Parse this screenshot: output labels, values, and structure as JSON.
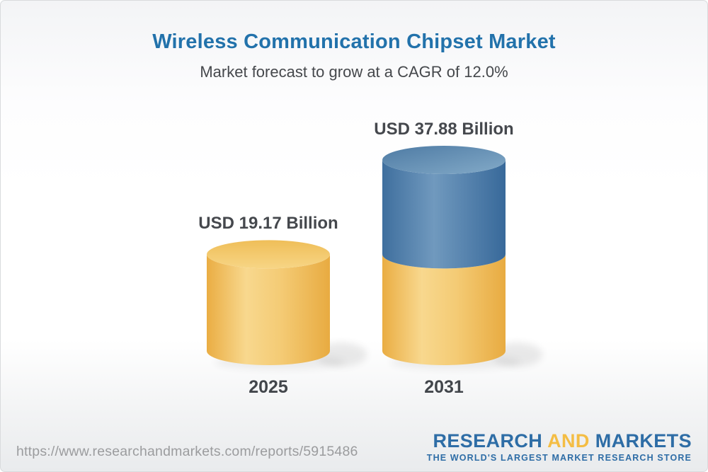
{
  "header": {
    "title": "Wireless Communication Chipset Market",
    "subtitle": "Market forecast to grow at a CAGR of 12.0%"
  },
  "chart_data": {
    "type": "bar",
    "style": "3d-cylinder",
    "title": "Wireless Communication Chipset Market",
    "subtitle": "Market forecast to grow at a CAGR of 12.0%",
    "cagr_pct": 12.0,
    "unit": "USD Billion",
    "categories": [
      "2025",
      "2031"
    ],
    "values": [
      19.17,
      37.88
    ],
    "bars": [
      {
        "category": "2025",
        "value": 19.17,
        "label": "USD 19.17 Billion",
        "segments": [
          {
            "value": 19.17,
            "tone": "yellow"
          }
        ]
      },
      {
        "category": "2031",
        "value": 37.88,
        "label": "USD 37.88 Billion",
        "segments": [
          {
            "value": 19.17,
            "tone": "yellow"
          },
          {
            "value": 18.71,
            "tone": "blue"
          }
        ]
      }
    ],
    "palette": {
      "yellow": "#F2C463",
      "blue": "#55809F"
    },
    "ylim": [
      0,
      37.88
    ],
    "grid": false,
    "legend": false
  },
  "colors": {
    "title_blue": "#2272AB",
    "text_dark": "#45484D",
    "url_gray": "#9B9C9E",
    "logo_blue": "#2E6DA6",
    "logo_gold": "#F4BD44"
  },
  "footer": {
    "url": "https://www.researchandmarkets.com/reports/5915486",
    "logo": {
      "word1": "RESEARCH",
      "word2": "AND",
      "word3": "MARKETS",
      "tagline": "THE WORLD'S LARGEST MARKET RESEARCH STORE"
    }
  }
}
